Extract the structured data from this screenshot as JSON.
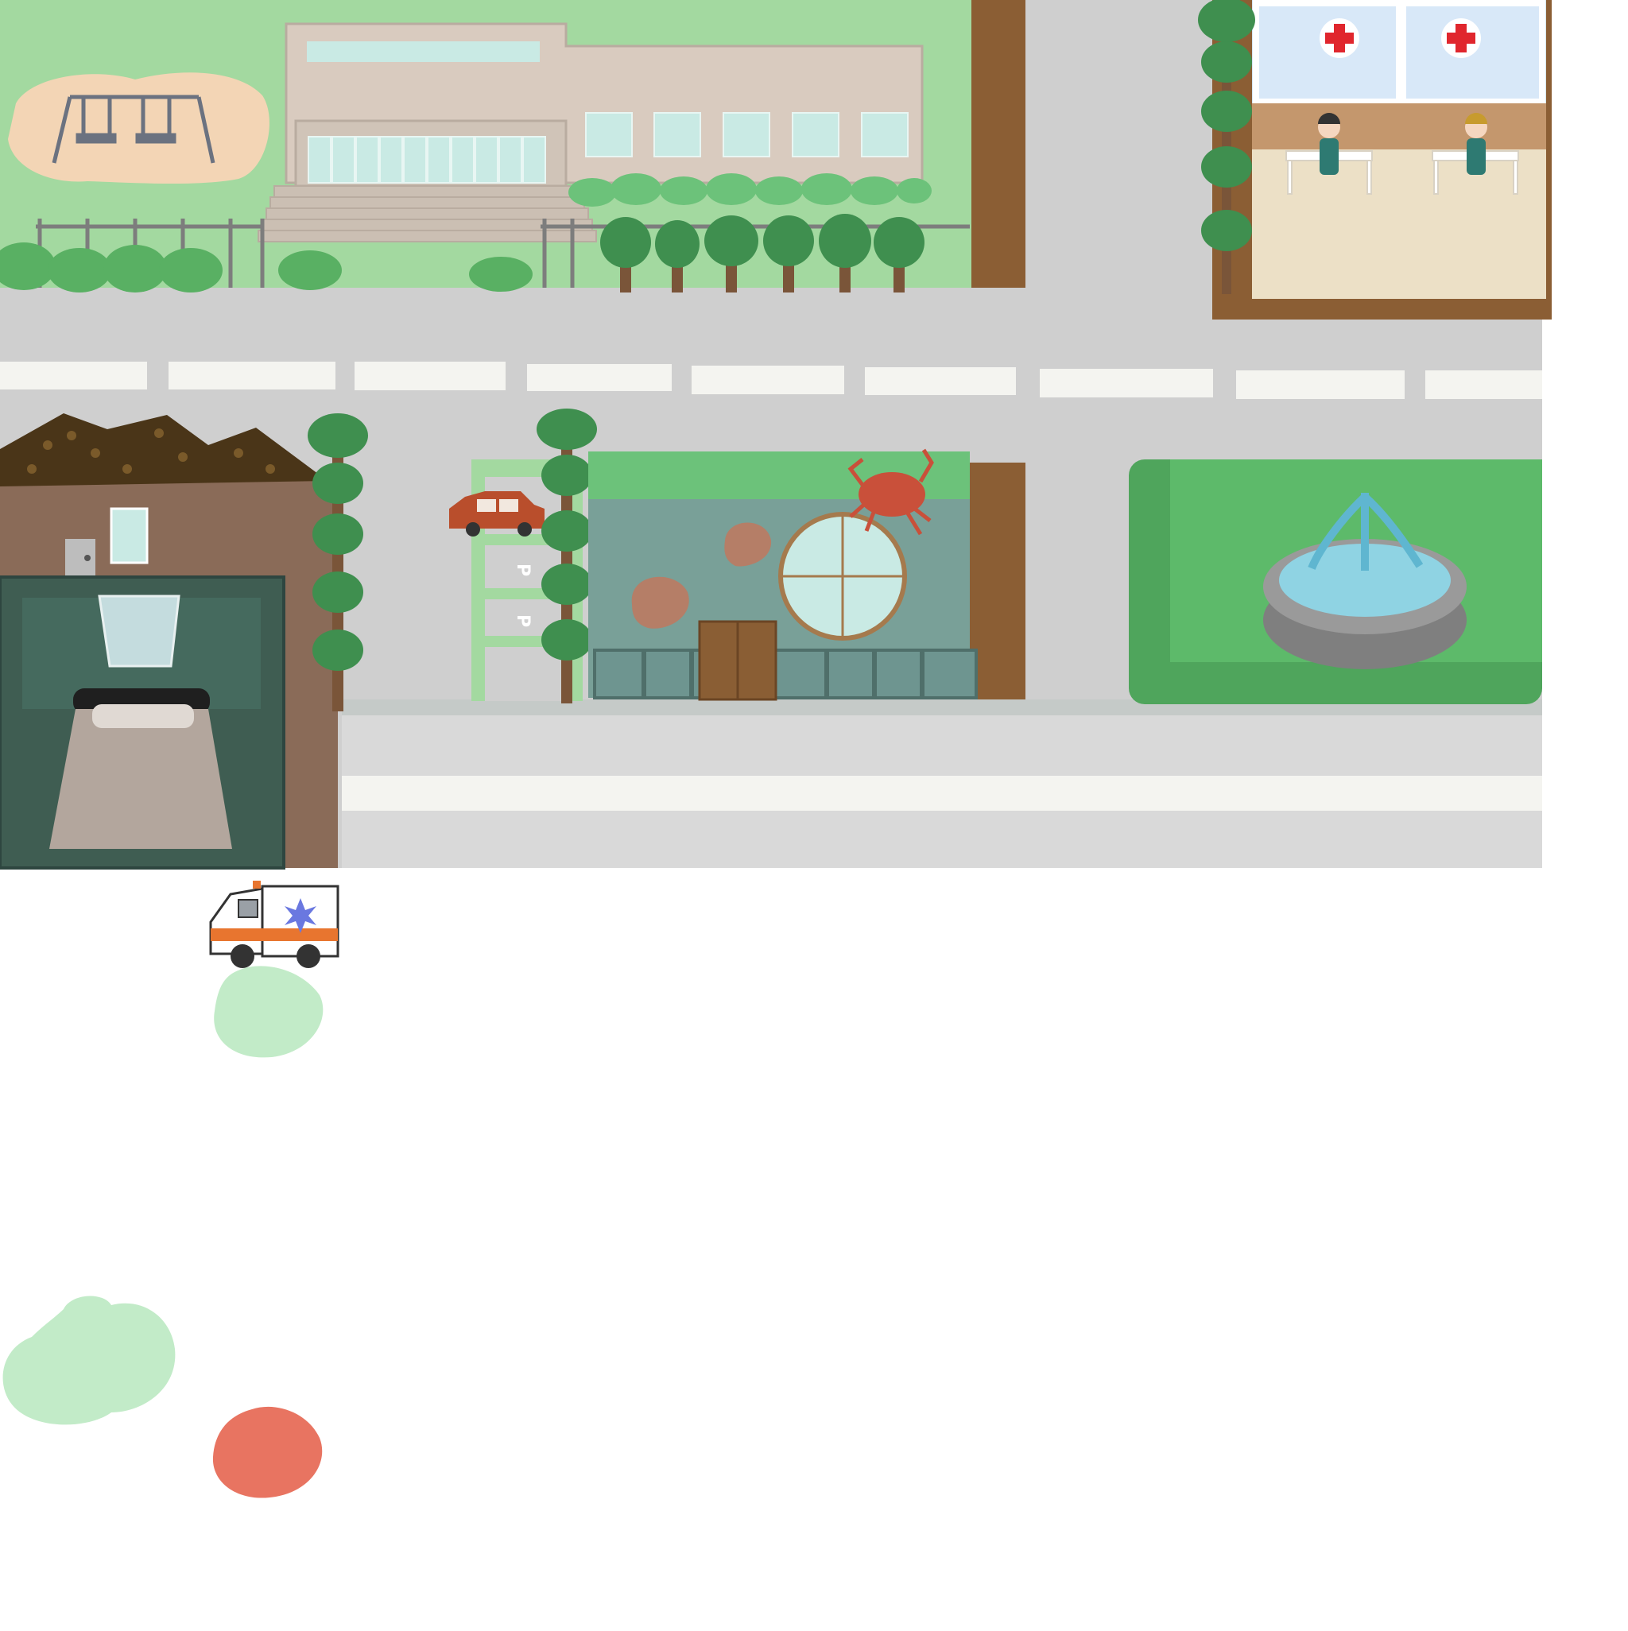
{
  "scene": {
    "name": "town-map",
    "colors": {
      "grass": "#a3d9a0",
      "road": "#cfcfcf",
      "lane_marking": "#f4f4f0",
      "sidewalk": "#d9d9d9",
      "dirt": "#8b5e34",
      "sand": "#f3d5b5",
      "building_beige": "#d9cbbf",
      "window": "#c9eae4",
      "tree_leaf": "#3f8f4f",
      "tree_trunk": "#7a5539",
      "hedge": "#59b063",
      "roof": "#4a3518",
      "house_wall": "#8a6b58",
      "bedroom": "#3f5d52",
      "bed": "#b3a69d",
      "shop_wall": "#79a098",
      "shop_door": "#8a5e34",
      "crab": "#c9503a",
      "shell": "#b57e67",
      "car": "#b94e2c",
      "clinic_floor": "#ece0c6",
      "clinic_wall": "#c4976d",
      "clinic_window": "#d8e8f8",
      "red_cross": "#e0262d",
      "scrubs": "#2e7a72",
      "fountain_water": "#8fd3e3",
      "fountain_stone": "#9a9a9a",
      "ambulance_orange": "#e8752f",
      "ambulance_star": "#6a78e0"
    },
    "parking_letters": [
      "P",
      "P"
    ]
  },
  "markers": [
    {
      "name": "light-green-marker",
      "color": "#c2ebc8"
    },
    {
      "name": "light-green-marker-large",
      "color": "#c2ebc8"
    },
    {
      "name": "red-marker",
      "color": "#e87461"
    }
  ],
  "vehicles": {
    "ambulance": {
      "icon": "ambulance-icon"
    },
    "car": {
      "icon": "car-icon"
    }
  }
}
